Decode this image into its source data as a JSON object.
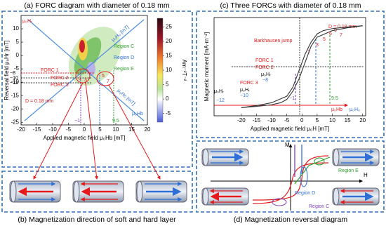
{
  "chart_data": [
    {
      "type": "forc",
      "title": "(a) FORC diagram with diameter of 0.18 mm",
      "x_label": "Applied magnetic field μ₀Hb [mT]",
      "y_label": "Reversal field μ₀Hr [mT]",
      "xlim": [
        -20,
        20
      ],
      "xticks": [
        -20,
        -15,
        -10,
        -5,
        0,
        5,
        10,
        15,
        20
      ],
      "ylim": [
        -26,
        15
      ],
      "yticks": [
        -25,
        -20,
        -15,
        -10,
        -5,
        0,
        5,
        10
      ],
      "clim": [
        -8,
        28
      ],
      "cticks": [
        25,
        20,
        15,
        10,
        5,
        0,
        -5
      ],
      "clabel": "Am⁻²T⁻²",
      "annotations": [
        "μ₀Hᵤ [mT]",
        "μ₀Hc [mT]",
        "Region C",
        "Region D",
        "Region E",
        "FORC 1",
        "FORC 2",
        "FORC 3",
        "−8",
        "−10",
        "−12",
        "D = 0.18 mm",
        "−1",
        "9.5",
        "μ₀Hᵣ",
        "μ₀Hb",
        "1",
        "3",
        "5",
        "7"
      ]
    },
    {
      "type": "line",
      "title": "(c) Three FORCs with diameter of 0.18 mm",
      "x_label": "Applied magnetic field μ₀H [mT]",
      "y_label": "Magnetic moment [mA·m⁻²]",
      "xlim": [
        -29,
        21
      ],
      "xticks": [
        -20,
        -15,
        -10,
        -5,
        0,
        5,
        10,
        15,
        20
      ],
      "ylim": [
        -1.2,
        1.2
      ],
      "series": [
        {
          "color": "#333333",
          "x": [
            20,
            15,
            10,
            7,
            5,
            3,
            1,
            0,
            -1,
            -3,
            -5,
            -10,
            -15,
            -20
          ],
          "values": [
            1.0,
            0.97,
            0.93,
            0.88,
            0.8,
            0.6,
            0.3,
            0.1,
            -0.1,
            -0.5,
            -0.72,
            -0.88,
            -0.95,
            -1.0
          ]
        },
        {
          "color": "#333333",
          "x": [
            -20,
            -15,
            -10,
            -7,
            -5,
            -3,
            -1,
            0,
            1,
            3,
            5,
            10,
            15,
            20
          ],
          "values": [
            -1.0,
            -0.97,
            -0.93,
            -0.88,
            -0.8,
            -0.6,
            -0.3,
            -0.1,
            0.1,
            0.5,
            0.72,
            0.88,
            0.95,
            1.0
          ]
        }
      ],
      "annotations": [
        "D = 0.18 mm",
        "Barkhausen jump",
        "FORC 1",
        "FORC 2",
        "FORC 3",
        "μ₀Hᵣ",
        "−8",
        "μ₀Hᵣ",
        "−10",
        "μ₀Hᵣ",
        "−12",
        "1",
        "3",
        "5",
        "6",
        "9",
        "7",
        "−1",
        "9.5",
        "μ₀Hb",
        "μ₀Hᵤ"
      ]
    }
  ],
  "panel_b": {
    "caption": "(b) Magnetization direction of soft and hard layer"
  },
  "panel_d": {
    "caption": "(d) Magnetization reversal diagram",
    "labels": [
      "M",
      "H",
      "Region E",
      "Region D",
      "Region C"
    ]
  }
}
